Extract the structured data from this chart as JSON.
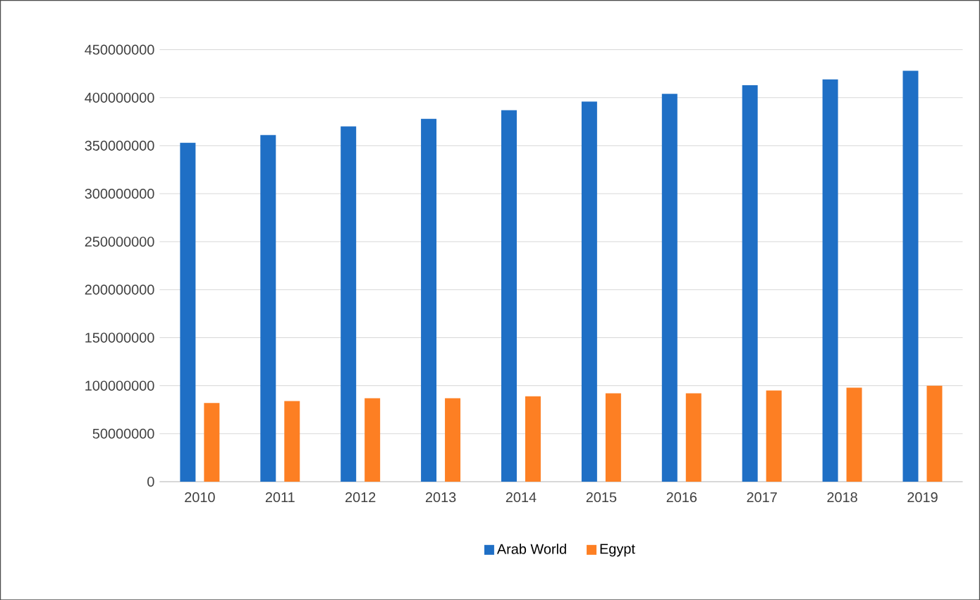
{
  "chart_data": {
    "type": "bar",
    "categories": [
      "2010",
      "2011",
      "2012",
      "2013",
      "2014",
      "2015",
      "2016",
      "2017",
      "2018",
      "2019"
    ],
    "series": [
      {
        "name": "Arab World",
        "color": "#1f6fc5",
        "values": [
          353000000,
          361000000,
          370000000,
          378000000,
          387000000,
          396000000,
          404000000,
          413000000,
          419000000,
          428000000
        ]
      },
      {
        "name": "Egypt",
        "color": "#fd7f23",
        "values": [
          82000000,
          84000000,
          87000000,
          87000000,
          89000000,
          92000000,
          92000000,
          95000000,
          98000000,
          100000000
        ]
      }
    ],
    "ylim": [
      0,
      450000000
    ],
    "yticks": [
      0,
      50000000,
      100000000,
      150000000,
      200000000,
      250000000,
      300000000,
      350000000,
      400000000,
      450000000
    ],
    "grid": "y",
    "legend": "bottom"
  }
}
